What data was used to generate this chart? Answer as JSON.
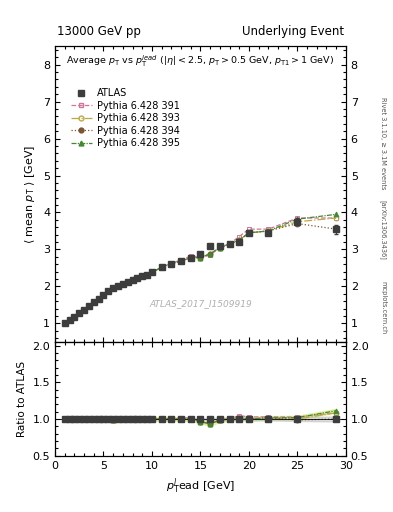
{
  "title_left": "13000 GeV pp",
  "title_right": "Underlying Event",
  "xlabel": "$p_{\\mathrm{T}}^{l}$ead [GeV]",
  "ylabel_main": "$\\langle$ mean $p_{\\mathrm{T}}$ $\\rangle$ [GeV]",
  "ylabel_ratio": "Ratio to ATLAS",
  "annotation": "Average $p_{\\mathrm{T}}$ vs $p_{\\mathrm{T}}^{lead}$ ($|\\eta| < 2.5$, $p_{\\mathrm{T}} > 0.5$ GeV, $p_{\\mathrm{T1}} > 1$ GeV)",
  "watermark": "ATLAS_2017_I1509919",
  "right_label1": "Rivet 3.1.10, ≥ 3.1M events",
  "right_label2": "[arXiv:1306.3436]",
  "right_label3": "mcplots.cern.ch",
  "ylim_main": [
    0.5,
    8.5
  ],
  "ylim_ratio": [
    0.5,
    2.05
  ],
  "xlim": [
    0,
    30
  ],
  "x_data": [
    1.0,
    1.5,
    2.0,
    2.5,
    3.0,
    3.5,
    4.0,
    4.5,
    5.0,
    5.5,
    6.0,
    6.5,
    7.0,
    7.5,
    8.0,
    8.5,
    9.0,
    9.5,
    10.0,
    11.0,
    12.0,
    13.0,
    14.0,
    15.0,
    16.0,
    17.0,
    18.0,
    19.0,
    20.0,
    22.0,
    25.0,
    29.0
  ],
  "atlas_y": [
    1.0,
    1.08,
    1.17,
    1.27,
    1.37,
    1.47,
    1.57,
    1.67,
    1.77,
    1.87,
    1.97,
    2.02,
    2.07,
    2.12,
    2.17,
    2.22,
    2.27,
    2.32,
    2.38,
    2.52,
    2.62,
    2.68,
    2.78,
    2.88,
    3.08,
    3.1,
    3.15,
    3.2,
    3.45,
    3.45,
    3.75,
    3.55
  ],
  "atlas_yerr": [
    0.02,
    0.02,
    0.02,
    0.02,
    0.02,
    0.02,
    0.02,
    0.02,
    0.02,
    0.02,
    0.02,
    0.02,
    0.02,
    0.02,
    0.02,
    0.02,
    0.02,
    0.02,
    0.02,
    0.02,
    0.02,
    0.02,
    0.02,
    0.02,
    0.05,
    0.05,
    0.05,
    0.05,
    0.07,
    0.07,
    0.1,
    0.12
  ],
  "py391_y": [
    1.0,
    1.08,
    1.17,
    1.27,
    1.37,
    1.47,
    1.57,
    1.67,
    1.77,
    1.87,
    1.95,
    2.02,
    2.07,
    2.12,
    2.17,
    2.22,
    2.27,
    2.32,
    2.38,
    2.52,
    2.62,
    2.72,
    2.82,
    2.78,
    2.85,
    3.05,
    3.15,
    3.35,
    3.55,
    3.55,
    3.85,
    3.85
  ],
  "py393_y": [
    1.0,
    1.08,
    1.17,
    1.27,
    1.37,
    1.47,
    1.57,
    1.67,
    1.77,
    1.87,
    1.95,
    2.02,
    2.07,
    2.12,
    2.17,
    2.22,
    2.27,
    2.32,
    2.38,
    2.52,
    2.62,
    2.68,
    2.78,
    2.78,
    2.88,
    3.05,
    3.15,
    3.25,
    3.45,
    3.5,
    3.75,
    3.85
  ],
  "py394_y": [
    1.0,
    1.08,
    1.17,
    1.27,
    1.37,
    1.47,
    1.57,
    1.67,
    1.77,
    1.87,
    1.95,
    2.02,
    2.07,
    2.12,
    2.17,
    2.22,
    2.27,
    2.32,
    2.38,
    2.52,
    2.62,
    2.68,
    2.78,
    2.78,
    2.88,
    3.05,
    3.15,
    3.25,
    3.45,
    3.5,
    3.7,
    3.55
  ],
  "py395_y": [
    1.0,
    1.08,
    1.17,
    1.27,
    1.37,
    1.47,
    1.57,
    1.67,
    1.77,
    1.87,
    1.95,
    2.02,
    2.07,
    2.12,
    2.17,
    2.22,
    2.27,
    2.32,
    2.38,
    2.52,
    2.62,
    2.68,
    2.78,
    2.78,
    2.88,
    3.05,
    3.15,
    3.25,
    3.45,
    3.5,
    3.82,
    3.95
  ],
  "atlas_color": "#3d3d3d",
  "py391_color": "#cc7799",
  "py393_color": "#bbaa44",
  "py394_color": "#7a5533",
  "py395_color": "#448833",
  "yticks_main": [
    1,
    2,
    3,
    4,
    5,
    6,
    7,
    8
  ],
  "yticks_ratio": [
    0.5,
    1.0,
    1.5,
    2.0
  ],
  "xticks": [
    0,
    5,
    10,
    15,
    20,
    25,
    30
  ]
}
